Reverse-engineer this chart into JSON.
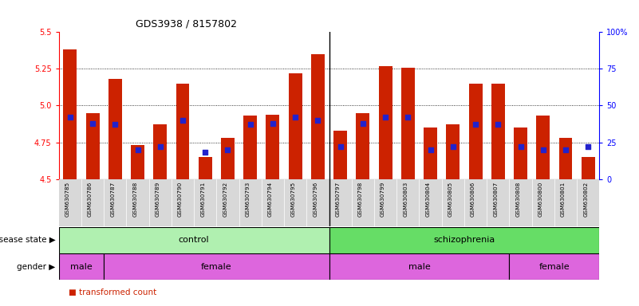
{
  "title": "GDS3938 / 8157802",
  "samples": [
    "GSM630785",
    "GSM630786",
    "GSM630787",
    "GSM630788",
    "GSM630789",
    "GSM630790",
    "GSM630791",
    "GSM630792",
    "GSM630793",
    "GSM630794",
    "GSM630795",
    "GSM630796",
    "GSM630797",
    "GSM630798",
    "GSM630799",
    "GSM630803",
    "GSM630804",
    "GSM630805",
    "GSM630806",
    "GSM630807",
    "GSM630808",
    "GSM630800",
    "GSM630801",
    "GSM630802"
  ],
  "red_values": [
    5.38,
    4.95,
    5.18,
    4.73,
    4.87,
    5.15,
    4.65,
    4.78,
    4.93,
    4.94,
    5.22,
    5.35,
    4.83,
    4.95,
    5.27,
    5.26,
    4.85,
    4.87,
    5.15,
    5.15,
    4.85,
    4.93,
    4.78,
    4.65
  ],
  "blue_values": [
    42,
    38,
    37,
    20,
    22,
    40,
    18,
    20,
    37,
    38,
    42,
    40,
    22,
    38,
    42,
    42,
    20,
    22,
    37,
    37,
    22,
    20,
    20,
    22
  ],
  "bar_color": "#cc2200",
  "dot_color": "#2222cc",
  "ylim_left": [
    4.5,
    5.5
  ],
  "ylim_right": [
    0,
    100
  ],
  "yticks_left": [
    4.5,
    4.75,
    5.0,
    5.25,
    5.5
  ],
  "yticks_right": [
    0,
    25,
    50,
    75,
    100
  ],
  "ytick_labels_right": [
    "0",
    "25",
    "50",
    "75",
    "100%"
  ],
  "grid_vals": [
    4.75,
    5.0,
    5.25
  ],
  "disease_color_control": "#b0f0b0",
  "disease_color_schizo": "#66dd66",
  "gender_color": "#dd66dd",
  "bg_xtick_color": "#d8d8d8"
}
